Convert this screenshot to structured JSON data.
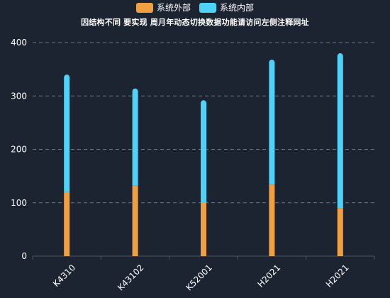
{
  "chart_data": {
    "type": "bar",
    "stacked": true,
    "title": "因结构不同 要实现 周月年动态切换数据功能请访问左侧注释网址",
    "categories": [
      "K4310",
      "K43102",
      "K52001",
      "H2021",
      "H2021"
    ],
    "series": [
      {
        "name": "系统外部",
        "color": "#f0a040",
        "values": [
          120,
          132,
          101,
          134,
          90
        ]
      },
      {
        "name": "系统内部",
        "color": "#4fd2f7",
        "values": [
          220,
          182,
          191,
          234,
          290
        ]
      }
    ],
    "yticks": [
      "0",
      "100",
      "200",
      "300",
      "400"
    ],
    "ylim": [
      0,
      400
    ],
    "grid": true,
    "legend_position": "top-center"
  }
}
